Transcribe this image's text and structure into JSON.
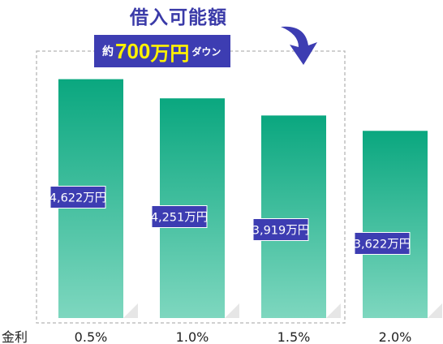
{
  "callout": {
    "title": "借入可能額",
    "prefix": "約",
    "amount": "700",
    "amount_unit": "万円",
    "suffix": "ダウン"
  },
  "colors": {
    "bar_top": "#0aa77f",
    "bar_bottom": "#7ed7bf",
    "label_bg": "#3d3db2",
    "label_text": "#ffffff",
    "callout_title": "#3a3aa8",
    "callout_highlight": "#fff200",
    "dashed_box": "#b5b5b5"
  },
  "chart_data": {
    "type": "bar",
    "xlabel": "金利",
    "ylabel": "",
    "title": "",
    "categories": [
      "0.5%",
      "1.0%",
      "1.5%",
      "2.0%"
    ],
    "values": [
      4622,
      4251,
      3919,
      3622
    ],
    "value_labels": [
      "4,622万円",
      "4,251万円",
      "3,919万円",
      "3,622万円"
    ],
    "value_unit": "万円",
    "grid": false
  }
}
